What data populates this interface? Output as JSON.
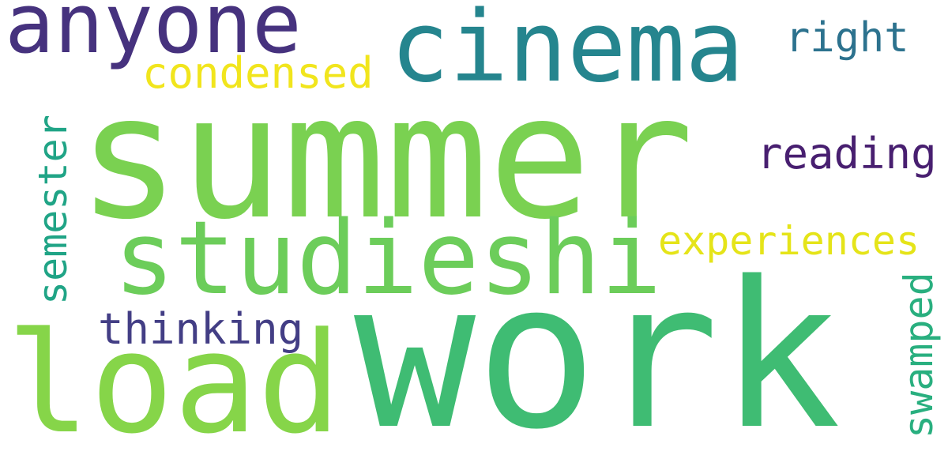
{
  "cloud": {
    "words": [
      {
        "text": "summer",
        "color": "#7ad151"
      },
      {
        "text": "work",
        "color": "#3fbc73"
      },
      {
        "text": "load",
        "color": "#86d549"
      },
      {
        "text": "studieshi",
        "color": "#6ccd5a"
      },
      {
        "text": "cinema",
        "color": "#25858e"
      },
      {
        "text": "anyone",
        "color": "#46327e"
      },
      {
        "text": "condensed",
        "color": "#f1e51d"
      },
      {
        "text": "right",
        "color": "#2c728e"
      },
      {
        "text": "reading",
        "color": "#481f70"
      },
      {
        "text": "experiences",
        "color": "#e5e419"
      },
      {
        "text": "thinking",
        "color": "#433e85"
      },
      {
        "text": "semester",
        "color": "#20a486"
      },
      {
        "text": "swamped",
        "color": "#29af7f"
      }
    ]
  }
}
